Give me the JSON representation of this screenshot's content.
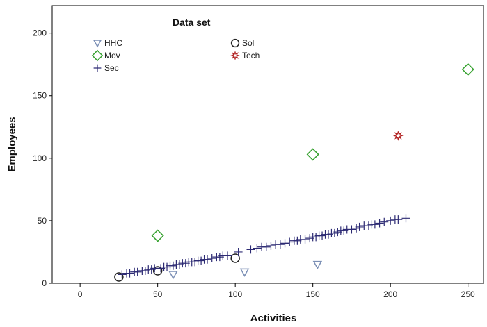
{
  "chart_data": {
    "type": "scatter",
    "title": "",
    "xlabel": "Activities",
    "ylabel": "Employees",
    "xlim": [
      -18,
      260
    ],
    "ylim": [
      0,
      222
    ],
    "xticks": [
      0,
      50,
      100,
      150,
      200,
      250
    ],
    "yticks": [
      0,
      50,
      100,
      150,
      200
    ],
    "grid": false,
    "legend": {
      "title": "Data set",
      "placement": "top-left",
      "columns": 2
    },
    "series": [
      {
        "name": "HHC",
        "marker": "triangle-down",
        "color": "#7b8fb5",
        "points": [
          [
            60,
            7
          ],
          [
            106,
            9
          ],
          [
            153,
            15
          ]
        ]
      },
      {
        "name": "Sol",
        "marker": "circle",
        "color": "#222222",
        "points": [
          [
            25,
            5
          ],
          [
            50,
            10
          ],
          [
            100,
            20
          ]
        ]
      },
      {
        "name": "Mov",
        "marker": "diamond",
        "color": "#33a02c",
        "points": [
          [
            50,
            38
          ],
          [
            150,
            103
          ],
          [
            250,
            171
          ]
        ]
      },
      {
        "name": "Tech",
        "marker": "star",
        "color": "#b22222",
        "points": [
          [
            205,
            118
          ]
        ]
      },
      {
        "name": "Sec",
        "marker": "plus",
        "color": "#2c2a73",
        "points": [
          [
            27,
            7
          ],
          [
            30,
            8
          ],
          [
            32,
            8
          ],
          [
            35,
            9
          ],
          [
            37,
            9
          ],
          [
            40,
            10
          ],
          [
            42,
            10
          ],
          [
            44,
            11
          ],
          [
            46,
            11
          ],
          [
            48,
            12
          ],
          [
            52,
            12
          ],
          [
            54,
            13
          ],
          [
            56,
            13
          ],
          [
            58,
            14
          ],
          [
            60,
            14
          ],
          [
            62,
            15
          ],
          [
            64,
            15
          ],
          [
            66,
            16
          ],
          [
            68,
            16
          ],
          [
            70,
            17
          ],
          [
            72,
            17
          ],
          [
            74,
            17
          ],
          [
            76,
            18
          ],
          [
            78,
            18
          ],
          [
            80,
            19
          ],
          [
            82,
            19
          ],
          [
            85,
            20
          ],
          [
            88,
            21
          ],
          [
            90,
            21
          ],
          [
            92,
            22
          ],
          [
            95,
            22
          ],
          [
            102,
            25
          ],
          [
            110,
            27
          ],
          [
            114,
            28
          ],
          [
            117,
            29
          ],
          [
            120,
            29
          ],
          [
            123,
            30
          ],
          [
            126,
            31
          ],
          [
            129,
            31
          ],
          [
            132,
            32
          ],
          [
            135,
            33
          ],
          [
            138,
            34
          ],
          [
            140,
            34
          ],
          [
            142,
            35
          ],
          [
            145,
            35
          ],
          [
            148,
            36
          ],
          [
            150,
            37
          ],
          [
            152,
            37
          ],
          [
            154,
            38
          ],
          [
            156,
            38
          ],
          [
            158,
            39
          ],
          [
            160,
            39
          ],
          [
            162,
            40
          ],
          [
            164,
            40
          ],
          [
            166,
            41
          ],
          [
            168,
            42
          ],
          [
            170,
            42
          ],
          [
            172,
            43
          ],
          [
            175,
            43
          ],
          [
            178,
            44
          ],
          [
            180,
            45
          ],
          [
            183,
            46
          ],
          [
            186,
            46
          ],
          [
            188,
            47
          ],
          [
            190,
            47
          ],
          [
            193,
            48
          ],
          [
            196,
            49
          ],
          [
            200,
            50
          ],
          [
            203,
            51
          ],
          [
            205,
            51
          ],
          [
            210,
            52
          ]
        ]
      }
    ]
  }
}
